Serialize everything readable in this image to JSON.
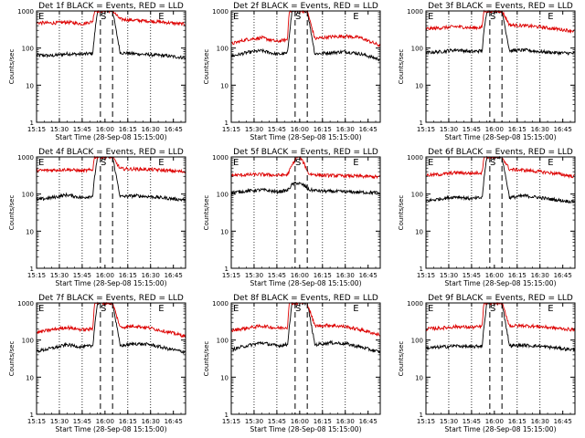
{
  "figure": {
    "x_tick_labels": [
      "15:15",
      "15:30",
      "15:45",
      "16:00",
      "16:15",
      "16:30",
      "16:45"
    ],
    "y_tick_labels": [
      "1",
      "10",
      "100",
      "1000"
    ],
    "xlabel": "Start Time (28-Sep-08 15:15:00)",
    "ylabel": "Counts/sec",
    "markers": [
      "E",
      "S",
      "E"
    ],
    "colors": {
      "events": "#000000",
      "lld": "#dd0000",
      "axes": "#000000"
    }
  },
  "chart_data": [
    {
      "type": "line",
      "title": "Det 1f BLACK = Events, RED = LLD",
      "xlabel": "Start Time (28-Sep-08 15:15:00)",
      "ylabel": "Counts/sec",
      "y_scale": "log",
      "ylim": [
        1,
        1000
      ],
      "xlim": [
        "15:15",
        "16:53"
      ],
      "grid": "vertical dotted at 15:30, 15:45, 16:15, 16:30",
      "dashed_lines": [
        "15:57",
        "16:05"
      ],
      "series": [
        {
          "name": "Events",
          "color": "#000000",
          "x": [
            "15:15",
            "15:25",
            "15:35",
            "15:45",
            "15:52",
            "15:53",
            "15:55",
            "16:05",
            "16:10",
            "16:20",
            "16:30",
            "16:40",
            "16:52"
          ],
          "values": [
            65,
            62,
            70,
            68,
            72,
            200,
            1000,
            1000,
            75,
            70,
            66,
            62,
            55
          ]
        },
        {
          "name": "LLD",
          "color": "#dd0000",
          "x": [
            "15:15",
            "15:25",
            "15:35",
            "15:45",
            "15:52",
            "15:53",
            "15:55",
            "16:05",
            "16:10",
            "16:20",
            "16:30",
            "16:40",
            "16:52"
          ],
          "values": [
            480,
            470,
            500,
            450,
            520,
            1000,
            1000,
            1000,
            600,
            560,
            530,
            490,
            440
          ]
        }
      ]
    },
    {
      "type": "line",
      "title": "Det 2f BLACK = Events, RED = LLD",
      "xlabel": "Start Time (28-Sep-08 15:15:00)",
      "ylabel": "Counts/sec",
      "y_scale": "log",
      "ylim": [
        1,
        1000
      ],
      "xlim": [
        "15:15",
        "16:53"
      ],
      "grid": "vertical dotted at 15:30, 15:45, 16:15, 16:30",
      "dashed_lines": [
        "15:57",
        "16:05"
      ],
      "series": [
        {
          "name": "Events",
          "color": "#000000",
          "x": [
            "15:15",
            "15:25",
            "15:35",
            "15:45",
            "15:52",
            "15:53",
            "15:55",
            "16:05",
            "16:10",
            "16:20",
            "16:30",
            "16:40",
            "16:52"
          ],
          "values": [
            60,
            75,
            85,
            68,
            72,
            200,
            1000,
            1000,
            70,
            75,
            80,
            70,
            50
          ]
        },
        {
          "name": "LLD",
          "color": "#dd0000",
          "x": [
            "15:15",
            "15:25",
            "15:35",
            "15:45",
            "15:52",
            "15:53",
            "15:55",
            "16:05",
            "16:10",
            "16:20",
            "16:30",
            "16:40",
            "16:52"
          ],
          "values": [
            130,
            170,
            190,
            150,
            170,
            1000,
            1000,
            1000,
            180,
            200,
            210,
            190,
            120
          ]
        }
      ]
    },
    {
      "type": "line",
      "title": "Det 3f BLACK = Events, RED = LLD",
      "xlabel": "Start Time (28-Sep-08 15:15:00)",
      "ylabel": "Counts/sec",
      "y_scale": "log",
      "ylim": [
        1,
        1000
      ],
      "xlim": [
        "15:15",
        "16:53"
      ],
      "grid": "vertical dotted at 15:30, 15:45, 16:15, 16:30",
      "dashed_lines": [
        "15:57",
        "16:05"
      ],
      "series": [
        {
          "name": "Events",
          "color": "#000000",
          "x": [
            "15:15",
            "15:25",
            "15:35",
            "15:45",
            "15:52",
            "15:53",
            "15:55",
            "16:05",
            "16:10",
            "16:20",
            "16:30",
            "16:40",
            "16:52"
          ],
          "values": [
            75,
            80,
            90,
            80,
            85,
            250,
            1000,
            1000,
            85,
            88,
            80,
            75,
            72
          ]
        },
        {
          "name": "LLD",
          "color": "#dd0000",
          "x": [
            "15:15",
            "15:25",
            "15:35",
            "15:45",
            "15:52",
            "15:53",
            "15:55",
            "16:05",
            "16:10",
            "16:20",
            "16:30",
            "16:40",
            "16:52"
          ],
          "values": [
            330,
            350,
            380,
            350,
            360,
            1000,
            1000,
            1000,
            420,
            400,
            370,
            330,
            290
          ]
        }
      ]
    },
    {
      "type": "line",
      "title": "Det 4f BLACK = Events, RED = LLD",
      "xlabel": "Start Time (28-Sep-08 15:15:00)",
      "ylabel": "Counts/sec",
      "y_scale": "log",
      "ylim": [
        1,
        1000
      ],
      "xlim": [
        "15:15",
        "16:53"
      ],
      "grid": "vertical dotted at 15:30, 15:45, 16:15, 16:30",
      "dashed_lines": [
        "15:57",
        "16:05"
      ],
      "series": [
        {
          "name": "Events",
          "color": "#000000",
          "x": [
            "15:15",
            "15:25",
            "15:35",
            "15:45",
            "15:52",
            "15:53",
            "15:55",
            "16:05",
            "16:10",
            "16:20",
            "16:30",
            "16:40",
            "16:52"
          ],
          "values": [
            70,
            80,
            95,
            80,
            90,
            250,
            1000,
            1000,
            85,
            90,
            85,
            78,
            70
          ]
        },
        {
          "name": "LLD",
          "color": "#dd0000",
          "x": [
            "15:15",
            "15:25",
            "15:35",
            "15:45",
            "15:52",
            "15:53",
            "15:55",
            "16:05",
            "16:10",
            "16:20",
            "16:30",
            "16:40",
            "16:52"
          ],
          "values": [
            430,
            440,
            460,
            420,
            450,
            1000,
            1000,
            1000,
            480,
            470,
            460,
            430,
            400
          ]
        }
      ]
    },
    {
      "type": "line",
      "title": "Det 5f BLACK = Events, RED = LLD",
      "xlabel": "Start Time (28-Sep-08 15:15:00)",
      "ylabel": "Counts/sec",
      "y_scale": "log",
      "ylim": [
        1,
        1000
      ],
      "xlim": [
        "15:15",
        "16:53"
      ],
      "grid": "vertical dotted at 15:30, 15:45, 16:15, 16:30",
      "dashed_lines": [
        "15:57",
        "16:05"
      ],
      "series": [
        {
          "name": "Events",
          "color": "#000000",
          "x": [
            "15:15",
            "15:25",
            "15:35",
            "15:45",
            "15:52",
            "15:55",
            "15:58",
            "16:00",
            "16:03",
            "16:06",
            "16:15",
            "16:30",
            "16:52"
          ],
          "values": [
            110,
            120,
            130,
            115,
            125,
            180,
            200,
            190,
            170,
            130,
            120,
            115,
            108
          ]
        },
        {
          "name": "LLD",
          "color": "#dd0000",
          "x": [
            "15:15",
            "15:25",
            "15:35",
            "15:45",
            "15:52",
            "15:55",
            "15:58",
            "16:00",
            "16:03",
            "16:06",
            "16:15",
            "16:30",
            "16:52"
          ],
          "values": [
            320,
            330,
            340,
            320,
            330,
            600,
            1000,
            1000,
            650,
            350,
            320,
            310,
            290
          ]
        }
      ]
    },
    {
      "type": "line",
      "title": "Det 6f BLACK = Events, RED = LLD",
      "xlabel": "Start Time (28-Sep-08 15:15:00)",
      "ylabel": "Counts/sec",
      "y_scale": "log",
      "ylim": [
        1,
        1000
      ],
      "xlim": [
        "15:15",
        "16:53"
      ],
      "grid": "vertical dotted at 15:30, 15:45, 16:15, 16:30",
      "dashed_lines": [
        "15:57",
        "16:05"
      ],
      "series": [
        {
          "name": "Events",
          "color": "#000000",
          "x": [
            "15:15",
            "15:25",
            "15:35",
            "15:45",
            "15:52",
            "15:53",
            "15:55",
            "16:05",
            "16:10",
            "16:20",
            "16:30",
            "16:40",
            "16:52"
          ],
          "values": [
            65,
            75,
            85,
            75,
            80,
            220,
            1000,
            1000,
            80,
            90,
            80,
            70,
            62
          ]
        },
        {
          "name": "LLD",
          "color": "#dd0000",
          "x": [
            "15:15",
            "15:25",
            "15:35",
            "15:45",
            "15:52",
            "15:53",
            "15:55",
            "16:05",
            "16:10",
            "16:20",
            "16:30",
            "16:40",
            "16:52"
          ],
          "values": [
            320,
            340,
            380,
            360,
            380,
            1000,
            1000,
            1000,
            460,
            440,
            400,
            360,
            300
          ]
        }
      ]
    },
    {
      "type": "line",
      "title": "Det 7f BLACK = Events, RED = LLD",
      "xlabel": "Start Time (28-Sep-08 15:15:00)",
      "ylabel": "Counts/sec",
      "y_scale": "log",
      "ylim": [
        1,
        1000
      ],
      "xlim": [
        "15:15",
        "16:53"
      ],
      "grid": "vertical dotted at 15:30, 15:45, 16:15, 16:30",
      "dashed_lines": [
        "15:57",
        "16:05"
      ],
      "series": [
        {
          "name": "Events",
          "color": "#000000",
          "x": [
            "15:15",
            "15:25",
            "15:35",
            "15:45",
            "15:52",
            "15:53",
            "15:55",
            "16:05",
            "16:10",
            "16:20",
            "16:30",
            "16:40",
            "16:52"
          ],
          "values": [
            50,
            60,
            75,
            65,
            70,
            200,
            1000,
            1000,
            70,
            80,
            75,
            60,
            48
          ]
        },
        {
          "name": "LLD",
          "color": "#dd0000",
          "x": [
            "15:15",
            "15:25",
            "15:35",
            "15:45",
            "15:52",
            "15:53",
            "15:55",
            "16:05",
            "16:10",
            "16:20",
            "16:30",
            "16:40",
            "16:52"
          ],
          "values": [
            160,
            190,
            220,
            190,
            200,
            1000,
            1000,
            1000,
            220,
            240,
            210,
            170,
            130
          ]
        }
      ]
    },
    {
      "type": "line",
      "title": "Det 8f BLACK = Events, RED = LLD",
      "xlabel": "Start Time (28-Sep-08 15:15:00)",
      "ylabel": "Counts/sec",
      "y_scale": "log",
      "ylim": [
        1,
        1000
      ],
      "xlim": [
        "15:15",
        "16:53"
      ],
      "grid": "vertical dotted at 15:30, 15:45, 16:15, 16:30",
      "dashed_lines": [
        "15:57",
        "16:05"
      ],
      "series": [
        {
          "name": "Events",
          "color": "#000000",
          "x": [
            "15:15",
            "15:25",
            "15:35",
            "15:45",
            "15:52",
            "15:53",
            "15:55",
            "16:05",
            "16:10",
            "16:20",
            "16:30",
            "16:40",
            "16:52"
          ],
          "values": [
            55,
            70,
            85,
            70,
            75,
            200,
            1000,
            1000,
            75,
            85,
            80,
            65,
            48
          ]
        },
        {
          "name": "LLD",
          "color": "#dd0000",
          "x": [
            "15:15",
            "15:25",
            "15:35",
            "15:45",
            "15:52",
            "15:53",
            "15:55",
            "16:05",
            "16:10",
            "16:20",
            "16:30",
            "16:40",
            "16:52"
          ],
          "values": [
            180,
            210,
            240,
            210,
            220,
            1000,
            1000,
            1000,
            240,
            250,
            230,
            190,
            140
          ]
        }
      ]
    },
    {
      "type": "line",
      "title": "Det 9f BLACK = Events, RED = LLD",
      "xlabel": "Start Time (28-Sep-08 15:15:00)",
      "ylabel": "Counts/sec",
      "y_scale": "log",
      "ylim": [
        1,
        1000
      ],
      "xlim": [
        "15:15",
        "16:53"
      ],
      "grid": "vertical dotted at 15:30, 15:45, 16:15, 16:30",
      "dashed_lines": [
        "15:57",
        "16:05"
      ],
      "series": [
        {
          "name": "Events",
          "color": "#000000",
          "x": [
            "15:15",
            "15:25",
            "15:35",
            "15:45",
            "15:52",
            "15:53",
            "15:55",
            "16:05",
            "16:10",
            "16:20",
            "16:30",
            "16:40",
            "16:52"
          ],
          "values": [
            60,
            65,
            70,
            65,
            70,
            200,
            1000,
            1000,
            70,
            72,
            68,
            62,
            55
          ]
        },
        {
          "name": "LLD",
          "color": "#dd0000",
          "x": [
            "15:15",
            "15:25",
            "15:35",
            "15:45",
            "15:52",
            "15:53",
            "15:55",
            "16:05",
            "16:10",
            "16:20",
            "16:30",
            "16:40",
            "16:52"
          ],
          "values": [
            200,
            210,
            230,
            220,
            230,
            1000,
            1000,
            1000,
            240,
            245,
            230,
            210,
            190
          ]
        }
      ]
    }
  ]
}
